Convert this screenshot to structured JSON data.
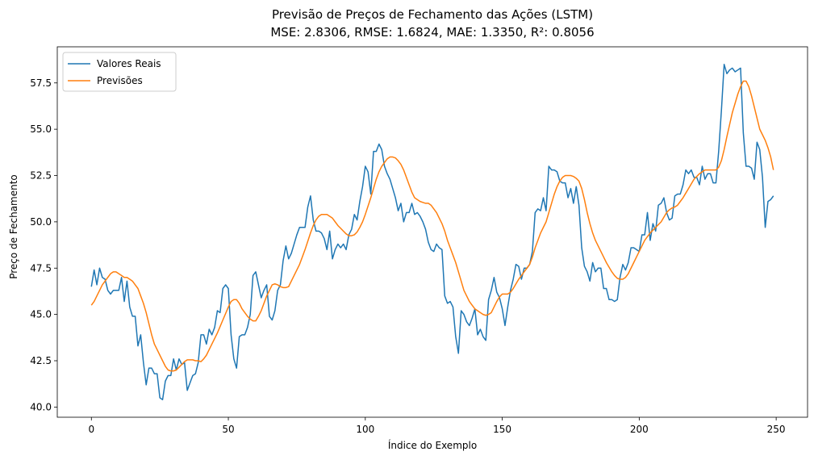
{
  "chart_data": {
    "type": "line",
    "title": "Previsão de Preços de Fechamento das Ações (LSTM)",
    "subtitle": "MSE: 2.8306, RMSE: 1.6824, MAE: 1.3350, R²: 0.8056",
    "x_label": "Índice do Exemplo",
    "y_label": "Preço de Fechamento",
    "legend": "upper left",
    "xlim": [
      -12.45,
      261.45
    ],
    "ylim": [
      39.45,
      59.45
    ],
    "xticks": [
      0,
      50,
      100,
      150,
      200,
      250
    ],
    "yticks": [
      {
        "value": 40,
        "label": "40.0"
      },
      42.5,
      {
        "value": 45,
        "label": "45.0"
      },
      47.5,
      {
        "value": 50,
        "label": "50.0"
      },
      52.5,
      {
        "value": 55,
        "label": "55.0"
      },
      57.5
    ],
    "x": [
      0,
      1,
      2,
      3,
      4,
      5,
      6,
      7,
      8,
      9,
      10,
      11,
      12,
      13,
      14,
      15,
      16,
      17,
      18,
      19,
      20,
      21,
      22,
      23,
      24,
      25,
      26,
      27,
      28,
      29,
      30,
      31,
      32,
      33,
      34,
      35,
      36,
      37,
      38,
      39,
      40,
      41,
      42,
      43,
      44,
      45,
      46,
      47,
      48,
      49,
      50,
      51,
      52,
      53,
      54,
      55,
      56,
      57,
      58,
      59,
      60,
      61,
      62,
      63,
      64,
      65,
      66,
      67,
      68,
      69,
      70,
      71,
      72,
      73,
      74,
      75,
      76,
      77,
      78,
      79,
      80,
      81,
      82,
      83,
      84,
      85,
      86,
      87,
      88,
      89,
      90,
      91,
      92,
      93,
      94,
      95,
      96,
      97,
      98,
      99,
      100,
      101,
      102,
      103,
      104,
      105,
      106,
      107,
      108,
      109,
      110,
      111,
      112,
      113,
      114,
      115,
      116,
      117,
      118,
      119,
      120,
      121,
      122,
      123,
      124,
      125,
      126,
      127,
      128,
      129,
      130,
      131,
      132,
      133,
      134,
      135,
      136,
      137,
      138,
      139,
      140,
      141,
      142,
      143,
      144,
      145,
      146,
      147,
      148,
      149,
      150,
      151,
      152,
      153,
      154,
      155,
      156,
      157,
      158,
      159,
      160,
      161,
      162,
      163,
      164,
      165,
      166,
      167,
      168,
      169,
      170,
      171,
      172,
      173,
      174,
      175,
      176,
      177,
      178,
      179,
      180,
      181,
      182,
      183,
      184,
      185,
      186,
      187,
      188,
      189,
      190,
      191,
      192,
      193,
      194,
      195,
      196,
      197,
      198,
      199,
      200,
      201,
      202,
      203,
      204,
      205,
      206,
      207,
      208,
      209,
      210,
      211,
      212,
      213,
      214,
      215,
      216,
      217,
      218,
      219,
      220,
      221,
      222,
      223,
      224,
      225,
      226,
      227,
      228,
      229,
      230,
      231,
      232,
      233,
      234,
      235,
      236,
      237,
      238,
      239,
      240,
      241,
      242,
      243,
      244,
      245,
      246,
      247,
      248,
      249
    ],
    "series": [
      {
        "name": "Valores Reais",
        "color": "#1f77b4",
        "values": [
          46.5,
          47.4,
          46.6,
          47.5,
          47.0,
          46.9,
          46.3,
          46.1,
          46.3,
          46.3,
          46.3,
          47.0,
          45.7,
          46.8,
          45.4,
          44.9,
          44.9,
          43.3,
          43.9,
          42.4,
          41.2,
          42.1,
          42.1,
          41.8,
          41.8,
          40.5,
          40.4,
          41.4,
          41.7,
          41.7,
          42.6,
          42.0,
          42.6,
          42.3,
          42.4,
          40.9,
          41.3,
          41.7,
          41.8,
          42.4,
          43.9,
          43.9,
          43.4,
          44.2,
          43.9,
          44.3,
          45.2,
          45.1,
          46.4,
          46.6,
          46.4,
          43.9,
          42.6,
          42.1,
          43.8,
          43.9,
          43.9,
          44.3,
          45.0,
          47.1,
          47.3,
          46.6,
          45.9,
          46.3,
          46.6,
          44.9,
          44.7,
          45.2,
          46.3,
          46.6,
          47.9,
          48.7,
          48.0,
          48.3,
          48.8,
          49.3,
          49.7,
          49.7,
          49.7,
          50.8,
          51.4,
          50.1,
          49.5,
          49.5,
          49.4,
          49.1,
          48.5,
          49.5,
          48.0,
          48.5,
          48.8,
          48.6,
          48.8,
          48.5,
          49.3,
          49.6,
          50.4,
          50.1,
          51.1,
          51.9,
          53.0,
          52.7,
          51.5,
          53.8,
          53.8,
          54.2,
          53.9,
          53.0,
          52.6,
          52.3,
          51.8,
          51.3,
          50.6,
          51.0,
          50.0,
          50.5,
          50.5,
          51.0,
          50.4,
          50.5,
          50.3,
          50.0,
          49.6,
          48.9,
          48.5,
          48.4,
          48.8,
          48.6,
          48.5,
          46.0,
          45.6,
          45.7,
          45.4,
          43.8,
          42.9,
          45.2,
          45.0,
          44.6,
          44.4,
          44.8,
          45.3,
          43.9,
          44.2,
          43.8,
          43.6,
          45.8,
          46.3,
          47.0,
          46.2,
          45.9,
          45.3,
          44.4,
          45.4,
          46.3,
          46.9,
          47.7,
          47.6,
          46.9,
          47.5,
          47.5,
          47.7,
          48.4,
          50.5,
          50.7,
          50.6,
          51.3,
          50.6,
          53.0,
          52.8,
          52.8,
          52.7,
          52.2,
          52.1,
          52.1,
          51.3,
          51.8,
          51.0,
          51.9,
          50.9,
          48.6,
          47.6,
          47.3,
          46.8,
          47.8,
          47.3,
          47.5,
          47.5,
          46.4,
          46.4,
          45.8,
          45.8,
          45.7,
          45.8,
          47.0,
          47.7,
          47.4,
          47.8,
          48.6,
          48.6,
          48.5,
          48.4,
          49.3,
          49.3,
          50.5,
          49.0,
          49.9,
          49.5,
          50.9,
          51.0,
          51.3,
          50.5,
          50.1,
          50.2,
          51.4,
          51.5,
          51.5,
          52.0,
          52.8,
          52.6,
          52.8,
          52.4,
          52.4,
          52.0,
          53.0,
          52.3,
          52.6,
          52.6,
          52.1,
          52.1,
          53.8,
          56.0,
          58.5,
          58.0,
          58.2,
          58.3,
          58.1,
          58.2,
          58.3,
          54.8,
          53.0,
          53.0,
          52.9,
          52.3,
          54.3,
          53.9,
          52.4,
          49.7,
          51.1,
          51.2,
          51.4
        ]
      },
      {
        "name": "Previsões",
        "color": "#ff7f0e",
        "values": [
          45.5,
          45.7,
          46.0,
          46.3,
          46.6,
          46.8,
          47.0,
          47.2,
          47.3,
          47.3,
          47.2,
          47.1,
          47.0,
          47.0,
          46.9,
          46.8,
          46.6,
          46.4,
          46.0,
          45.6,
          45.1,
          44.5,
          43.9,
          43.4,
          43.1,
          42.8,
          42.5,
          42.2,
          42.0,
          41.95,
          41.95,
          42.0,
          42.15,
          42.3,
          42.45,
          42.55,
          42.55,
          42.55,
          42.5,
          42.5,
          42.45,
          42.6,
          42.8,
          43.1,
          43.4,
          43.7,
          44.0,
          44.35,
          44.7,
          45.05,
          45.4,
          45.7,
          45.8,
          45.8,
          45.6,
          45.3,
          45.1,
          44.9,
          44.75,
          44.65,
          44.65,
          44.9,
          45.2,
          45.6,
          46.0,
          46.3,
          46.6,
          46.65,
          46.6,
          46.5,
          46.45,
          46.45,
          46.5,
          46.8,
          47.1,
          47.4,
          47.7,
          48.1,
          48.5,
          48.95,
          49.4,
          49.8,
          50.1,
          50.3,
          50.4,
          50.4,
          50.4,
          50.3,
          50.2,
          50.0,
          49.8,
          49.65,
          49.5,
          49.35,
          49.25,
          49.25,
          49.3,
          49.45,
          49.7,
          50.0,
          50.4,
          50.85,
          51.3,
          51.8,
          52.3,
          52.7,
          53.0,
          53.2,
          53.4,
          53.5,
          53.5,
          53.45,
          53.3,
          53.1,
          52.8,
          52.4,
          52.0,
          51.6,
          51.3,
          51.2,
          51.1,
          51.05,
          51.0,
          51.0,
          50.9,
          50.7,
          50.5,
          50.2,
          49.9,
          49.5,
          49.0,
          48.6,
          48.2,
          47.8,
          47.3,
          46.8,
          46.3,
          46.0,
          45.7,
          45.5,
          45.3,
          45.2,
          45.1,
          45.0,
          44.95,
          45.0,
          45.1,
          45.4,
          45.7,
          45.95,
          46.1,
          46.1,
          46.1,
          46.2,
          46.4,
          46.65,
          46.9,
          47.1,
          47.3,
          47.5,
          47.7,
          48.1,
          48.6,
          49.0,
          49.4,
          49.7,
          50.0,
          50.5,
          51.0,
          51.5,
          51.9,
          52.2,
          52.4,
          52.5,
          52.5,
          52.5,
          52.45,
          52.35,
          52.2,
          51.8,
          51.2,
          50.5,
          49.9,
          49.4,
          49.0,
          48.7,
          48.4,
          48.1,
          47.8,
          47.55,
          47.3,
          47.1,
          46.95,
          46.9,
          46.9,
          47.0,
          47.2,
          47.5,
          47.8,
          48.1,
          48.4,
          48.7,
          49.0,
          49.2,
          49.4,
          49.55,
          49.7,
          49.85,
          50.0,
          50.25,
          50.5,
          50.65,
          50.75,
          50.8,
          50.9,
          51.1,
          51.3,
          51.55,
          51.8,
          52.05,
          52.3,
          52.45,
          52.6,
          52.7,
          52.8,
          52.8,
          52.8,
          52.8,
          52.8,
          52.95,
          53.3,
          53.9,
          54.6,
          55.25,
          55.9,
          56.4,
          56.9,
          57.3,
          57.6,
          57.6,
          57.3,
          56.8,
          56.2,
          55.6,
          55.0,
          54.7,
          54.4,
          54.0,
          53.5,
          52.8
        ]
      }
    ]
  }
}
